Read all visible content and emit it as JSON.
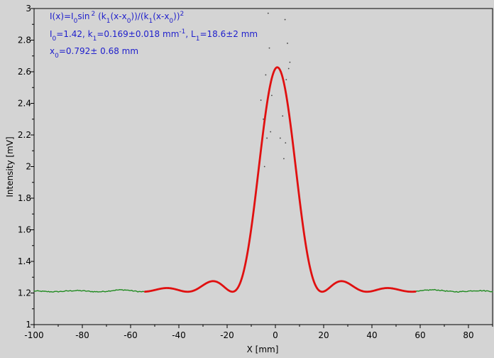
{
  "chart_data": {
    "type": "scatter",
    "title": "",
    "xlabel": "X [mm]",
    "ylabel": "Intensity [mV]",
    "xlim": [
      -100,
      90
    ],
    "ylim": [
      1,
      3
    ],
    "x_ticks": [
      -100,
      -80,
      -60,
      -40,
      -20,
      0,
      20,
      40,
      60,
      80
    ],
    "x_tick_labels": [
      "-100",
      "-80",
      "-60",
      "-40",
      "-20",
      "0",
      "20",
      "40",
      "60",
      "80"
    ],
    "y_ticks": [
      1,
      1.2,
      1.4,
      1.6,
      1.8,
      2,
      2.2,
      2.4,
      2.6,
      2.8,
      3
    ],
    "y_tick_labels": [
      "1",
      "1.2",
      "1.4",
      "1.6",
      "1.8",
      "2",
      "2.2",
      "2.4",
      "2.6",
      "2.8",
      "3"
    ],
    "grid": false,
    "legend": "none",
    "annotations": {
      "formula": {
        "base": "I(x)=I",
        "sub1": "0",
        "part2": "sin",
        "sup1": "2",
        "part3": " (k",
        "sub2": "1",
        "part4": "(x-x",
        "sub3": "0",
        "part5": "))/(k",
        "sub4": "1",
        "part6": "(x-x",
        "sub5": "0",
        "part7": "))",
        "sup2": "2"
      },
      "params1": {
        "a": "I",
        "a_sub": "0",
        "b": "=1.42,  k",
        "b_sub": "1",
        "c": "=0.169±0.018 mm",
        "c_sup": "-1",
        "d": ",   L",
        "d_sub": "1",
        "e": "=18.6±2 mm"
      },
      "params2": {
        "a": "x",
        "a_sub": "0",
        "b": "=0.792±  0.68 mm"
      }
    },
    "series": [
      {
        "role": "measured",
        "color": "#1f8a1f",
        "x_range": [
          -100,
          90
        ],
        "step": 0.5,
        "model": {
          "I0": 1.42,
          "k1": 0.169,
          "x0": 0.792,
          "baseline": 1.208,
          "center_amplitude": 1.42,
          "envelope_width": 10.5
        }
      },
      {
        "role": "fit",
        "color": "#e01010",
        "x_range": [
          -54,
          58
        ],
        "step": 0.25,
        "model": {
          "I0": 1.42,
          "k1": 0.169,
          "x0": 0.792,
          "baseline": 1.208,
          "center_amplitude": 1.42,
          "envelope_width": 10.5
        }
      },
      {
        "role": "scatter-outliers",
        "color": "#444444",
        "points": [
          [
            -3,
            2.97
          ],
          [
            -2.5,
            2.75
          ],
          [
            4,
            2.93
          ],
          [
            5,
            2.78
          ],
          [
            -4,
            2.58
          ],
          [
            -5,
            2.3
          ],
          [
            -3.5,
            2.18
          ],
          [
            -2,
            2.22
          ],
          [
            3,
            2.32
          ],
          [
            4.5,
            2.55
          ],
          [
            6,
            2.66
          ],
          [
            5.5,
            2.62
          ],
          [
            -6,
            2.42
          ],
          [
            -1.5,
            2.45
          ],
          [
            2,
            2.18
          ],
          [
            3.5,
            2.05
          ],
          [
            -4.5,
            2.0
          ],
          [
            4.2,
            2.15
          ]
        ]
      }
    ]
  }
}
